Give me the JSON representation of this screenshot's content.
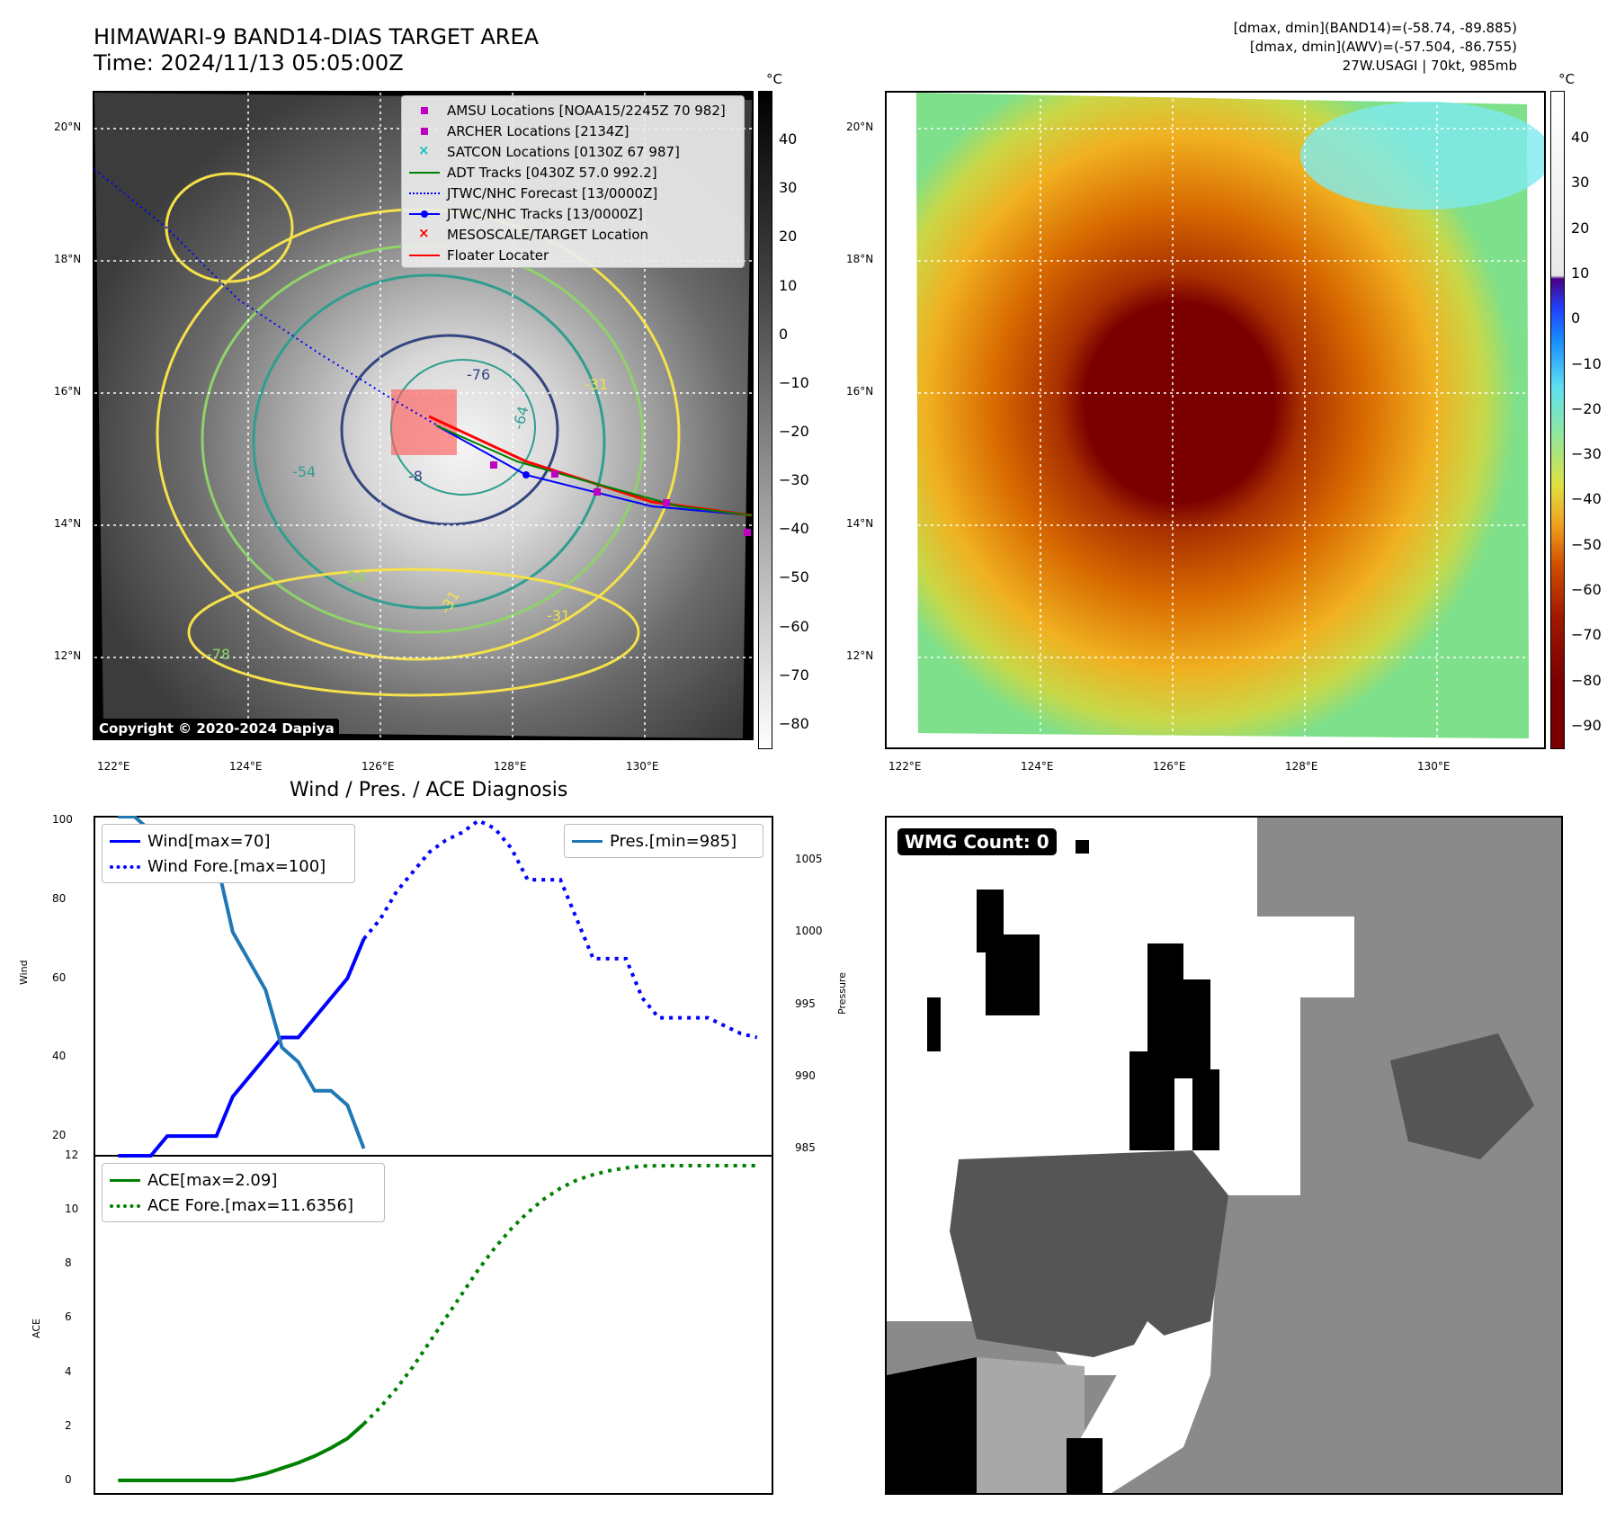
{
  "header": {
    "title_line1": "HIMAWARI-9 BAND14-DIAS TARGET AREA",
    "title_line2": "Time: 2024/11/13 05:05:00Z",
    "info_line1": "[dmax, dmin](BAND14)=(-58.74, -89.885)",
    "info_line2": "[dmax, dmin](AWV)=(-57.504, -86.755)",
    "info_line3": "27W.USAGI | 70kt, 985mb"
  },
  "map": {
    "lat_labels": [
      "20°N",
      "18°N",
      "16°N",
      "14°N",
      "12°N"
    ],
    "lon_labels": [
      "122°E",
      "124°E",
      "126°E",
      "128°E",
      "130°E"
    ],
    "contour_labels": [
      "-76",
      "-64",
      "-54",
      "-31",
      "-54",
      "-31",
      "-78",
      "-31",
      "-8"
    ],
    "copyright": "Copyright © 2020-2024 Dapiya",
    "colors": {
      "contour_yellow": "#f5e14a",
      "contour_lightgreen": "#8fd36a",
      "contour_teal": "#2f9e8f",
      "contour_navy": "#34457f"
    }
  },
  "colorbar_left": {
    "unit": "°C",
    "ticks": [
      "40",
      "30",
      "20",
      "10",
      "0",
      "−10",
      "−20",
      "−30",
      "−40",
      "−50",
      "−60",
      "−70",
      "−80"
    ]
  },
  "colorbar_right": {
    "unit": "°C",
    "ticks": [
      "40",
      "30",
      "20",
      "10",
      "0",
      "−10",
      "−20",
      "−30",
      "−40",
      "−50",
      "−60",
      "−70",
      "−80",
      "−90"
    ]
  },
  "legend_map": {
    "items": [
      {
        "label": "AMSU Locations [NOAA15/2245Z 70 982]",
        "marker": "square",
        "color": "#c000c0"
      },
      {
        "label": "ARCHER Locations [2134Z]",
        "marker": "square",
        "color": "#c000c0"
      },
      {
        "label": "SATCON Locations [0130Z 67 987]",
        "marker": "x",
        "color": "#17bfbf"
      },
      {
        "label": "ADT Tracks [0430Z 57.0 992.2]",
        "marker": "line",
        "color": "#008000"
      },
      {
        "label": "JTWC/NHC Forecast [13/0000Z]",
        "marker": "dotted",
        "color": "#0000ff"
      },
      {
        "label": "JTWC/NHC Tracks [13/0000Z]",
        "marker": "line-dot",
        "color": "#0000ff"
      },
      {
        "label": "MESOSCALE/TARGET Location",
        "marker": "x",
        "color": "#ff0000"
      },
      {
        "label": "Floater Locater",
        "marker": "line",
        "color": "#ff0000"
      }
    ]
  },
  "diagnosis": {
    "title": "Wind / Pres. / ACE Diagnosis",
    "wind_ylabel": "Wind",
    "pres_ylabel": "Pressure",
    "ace_ylabel": "ACE",
    "legend_wind": "Wind[max=70]",
    "legend_wind_fore": "Wind Fore.[max=100]",
    "legend_pres": "Pres.[min=985]",
    "legend_ace": "ACE[max=2.09]",
    "legend_ace_fore": "ACE Fore.[max=11.6356]",
    "wind_ticks": [
      "100",
      "80",
      "60",
      "40",
      "20"
    ],
    "pres_ticks": [
      "1005",
      "1000",
      "995",
      "990",
      "985"
    ],
    "ace_ticks": [
      "12",
      "10",
      "8",
      "6",
      "4",
      "2",
      "0"
    ]
  },
  "wmg": {
    "label": "WMG Count: 0"
  },
  "chart_data": [
    {
      "type": "line",
      "title": "Wind / Pres. / ACE Diagnosis",
      "ylabel": "Wind",
      "ylim": [
        15,
        101
      ],
      "series": [
        {
          "name": "Wind[max=70]",
          "color": "#0000ff",
          "style": "solid",
          "x": [
            0,
            1,
            2,
            3,
            4,
            5,
            6,
            7,
            8,
            9,
            10,
            11,
            12,
            13,
            14,
            15
          ],
          "y": [
            15,
            15,
            15,
            20,
            20,
            20,
            20,
            30,
            35,
            40,
            45,
            45,
            50,
            55,
            60,
            70
          ]
        },
        {
          "name": "Wind Fore.[max=100]",
          "color": "#0000ff",
          "style": "dotted",
          "x": [
            15,
            16,
            17,
            18,
            19,
            20,
            21,
            22,
            23,
            24,
            25,
            26,
            27,
            28,
            29,
            30,
            31,
            32,
            33,
            34,
            35,
            36,
            37,
            38,
            39
          ],
          "y": [
            70,
            75,
            82,
            87,
            92,
            95,
            97,
            100,
            98,
            93,
            85,
            85,
            85,
            75,
            65,
            65,
            65,
            55,
            50,
            50,
            50,
            50,
            48,
            46,
            45
          ]
        },
        {
          "name": "Pres.[min=985]",
          "color": "#1f77b4",
          "style": "solid",
          "axis": "right",
          "x": [
            0,
            1,
            2,
            3,
            4,
            5,
            6,
            7,
            8,
            9,
            10,
            11,
            12,
            13,
            14,
            15
          ],
          "y": [
            1008,
            1008,
            1007,
            1007,
            1006,
            1006,
            1005,
            1000,
            998,
            996,
            992,
            991,
            989,
            989,
            988,
            985
          ]
        }
      ],
      "y2lim": [
        984.5,
        1008.0
      ]
    },
    {
      "type": "line",
      "ylabel": "ACE",
      "ylim": [
        -0.5,
        12
      ],
      "series": [
        {
          "name": "ACE[max=2.09]",
          "color": "#008000",
          "style": "solid",
          "x": [
            0,
            1,
            2,
            3,
            4,
            5,
            6,
            7,
            8,
            9,
            10,
            11,
            12,
            13,
            14,
            15
          ],
          "y": [
            0,
            0,
            0,
            0,
            0,
            0,
            0,
            0,
            0.1,
            0.25,
            0.45,
            0.65,
            0.9,
            1.2,
            1.55,
            2.09
          ]
        },
        {
          "name": "ACE Fore.[max=11.6356]",
          "color": "#008000",
          "style": "dotted",
          "x": [
            15,
            16,
            17,
            18,
            19,
            20,
            21,
            22,
            23,
            24,
            25,
            26,
            27,
            28,
            29,
            30,
            31,
            32,
            33,
            34,
            35,
            36,
            37,
            38,
            39
          ],
          "y": [
            2.09,
            2.7,
            3.4,
            4.2,
            5.1,
            6.0,
            6.9,
            7.8,
            8.6,
            9.3,
            9.9,
            10.4,
            10.8,
            11.1,
            11.3,
            11.45,
            11.55,
            11.62,
            11.63,
            11.6356,
            11.6356,
            11.6356,
            11.6356,
            11.6356,
            11.6356
          ]
        }
      ]
    }
  ]
}
